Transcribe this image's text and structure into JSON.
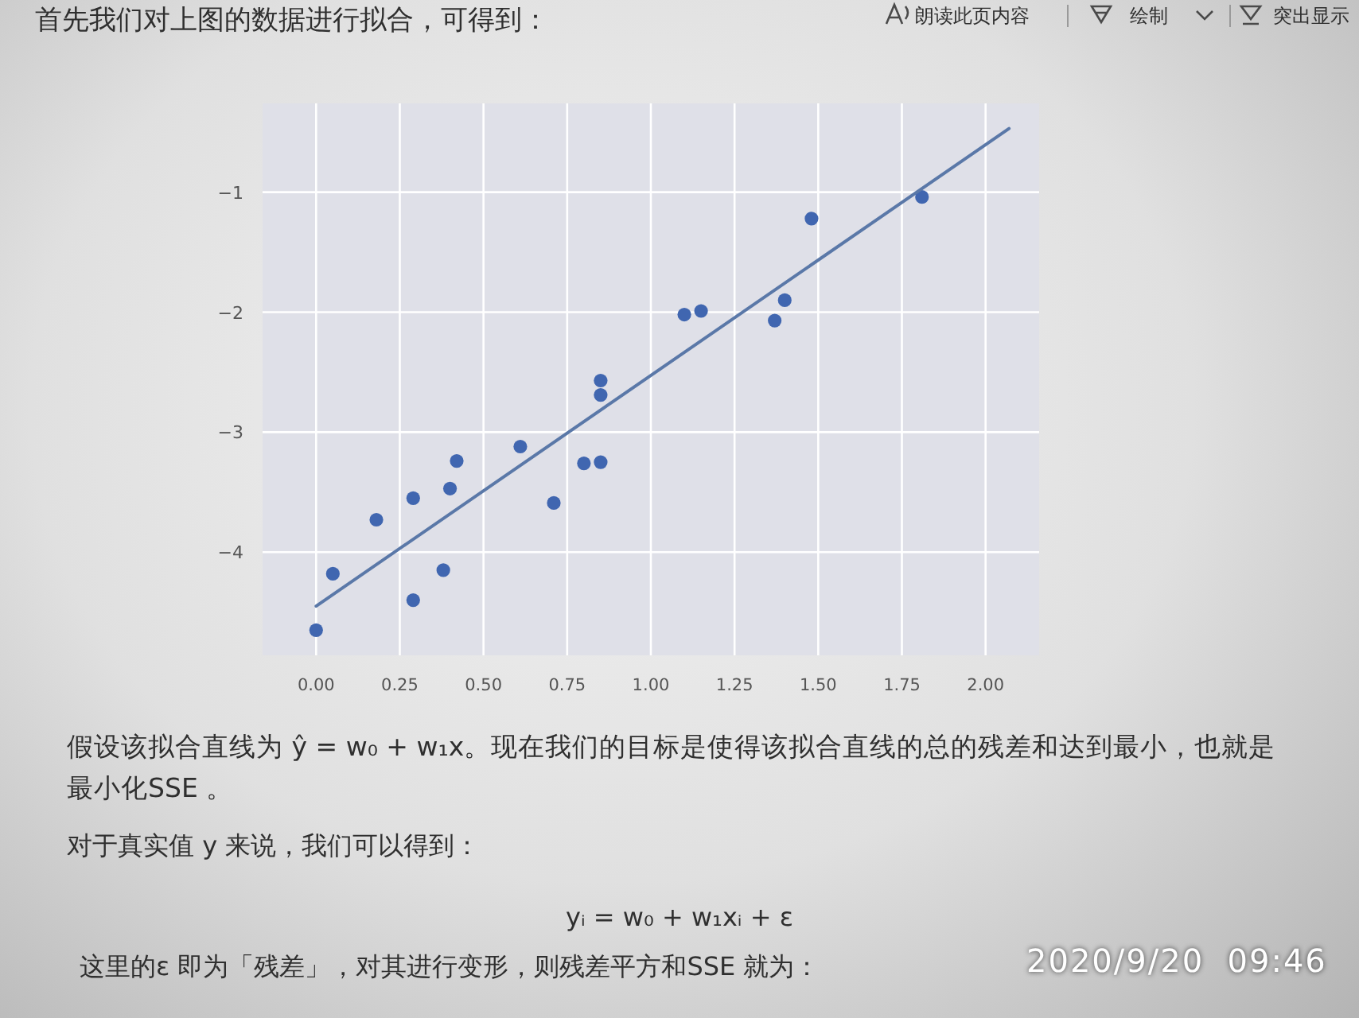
{
  "chart_data": {
    "type": "scatter",
    "series": [
      {
        "color": "#4066b0",
        "marker": "circle",
        "x": [
          0.0,
          0.05,
          0.18,
          0.29,
          0.29,
          0.38,
          0.4,
          0.42,
          0.61,
          0.71,
          0.8,
          0.85,
          0.85,
          0.85,
          1.1,
          1.15,
          1.37,
          1.4,
          1.48,
          1.81
        ],
        "values": [
          -4.65,
          -4.18,
          -3.73,
          -3.55,
          -4.4,
          -4.15,
          -3.47,
          -3.24,
          -3.12,
          -3.59,
          -3.26,
          -3.25,
          -2.69,
          -2.57,
          -2.02,
          -1.99,
          -2.07,
          -1.9,
          -1.22,
          -1.04
        ]
      },
      {
        "type": "line",
        "color": "#5a78a8",
        "x": [
          0.0,
          2.07
        ],
        "values": [
          -4.45,
          -0.47
        ]
      }
    ],
    "xlim": [
      -0.16,
      2.16
    ],
    "ylim": [
      -4.86,
      -0.26
    ],
    "xticks": [
      {
        "value": 0,
        "label": "0.00"
      },
      {
        "value": 0.25,
        "label": "0.25"
      },
      {
        "value": 0.5,
        "label": "0.50"
      },
      {
        "value": 0.75,
        "label": "0.75"
      },
      {
        "value": 1,
        "label": "1.00"
      },
      {
        "value": 1.25,
        "label": "1.25"
      },
      {
        "value": 1.5,
        "label": "1.50"
      },
      {
        "value": 1.75,
        "label": "1.75"
      },
      {
        "value": 2,
        "label": "2.00"
      }
    ],
    "yticks": [
      {
        "value": -4,
        "label": "−4"
      },
      {
        "value": -3,
        "label": "−3"
      },
      {
        "value": -2,
        "label": "−2"
      },
      {
        "value": -1,
        "label": "−1"
      }
    ],
    "grid": true,
    "annotations": [
      "首先我们对上图的数据进行拟合，可得到：",
      "朗读此页内容",
      "绘制",
      "突出显示",
      "假设该拟合直线为 ŷ = w₀ + w₁x。现在我们的目标是使得该拟合直线的总的残差和达到最小，也就是最小化SSE 。",
      "对于真实值 y 来说，我们可以得到：",
      "yᵢ = w₀ + w₁xᵢ + ε",
      "这里的ε 即为「残差」，对其进行变形，则残差平方和SSE 就为：",
      "2020/9/20  09:46"
    ]
  }
}
